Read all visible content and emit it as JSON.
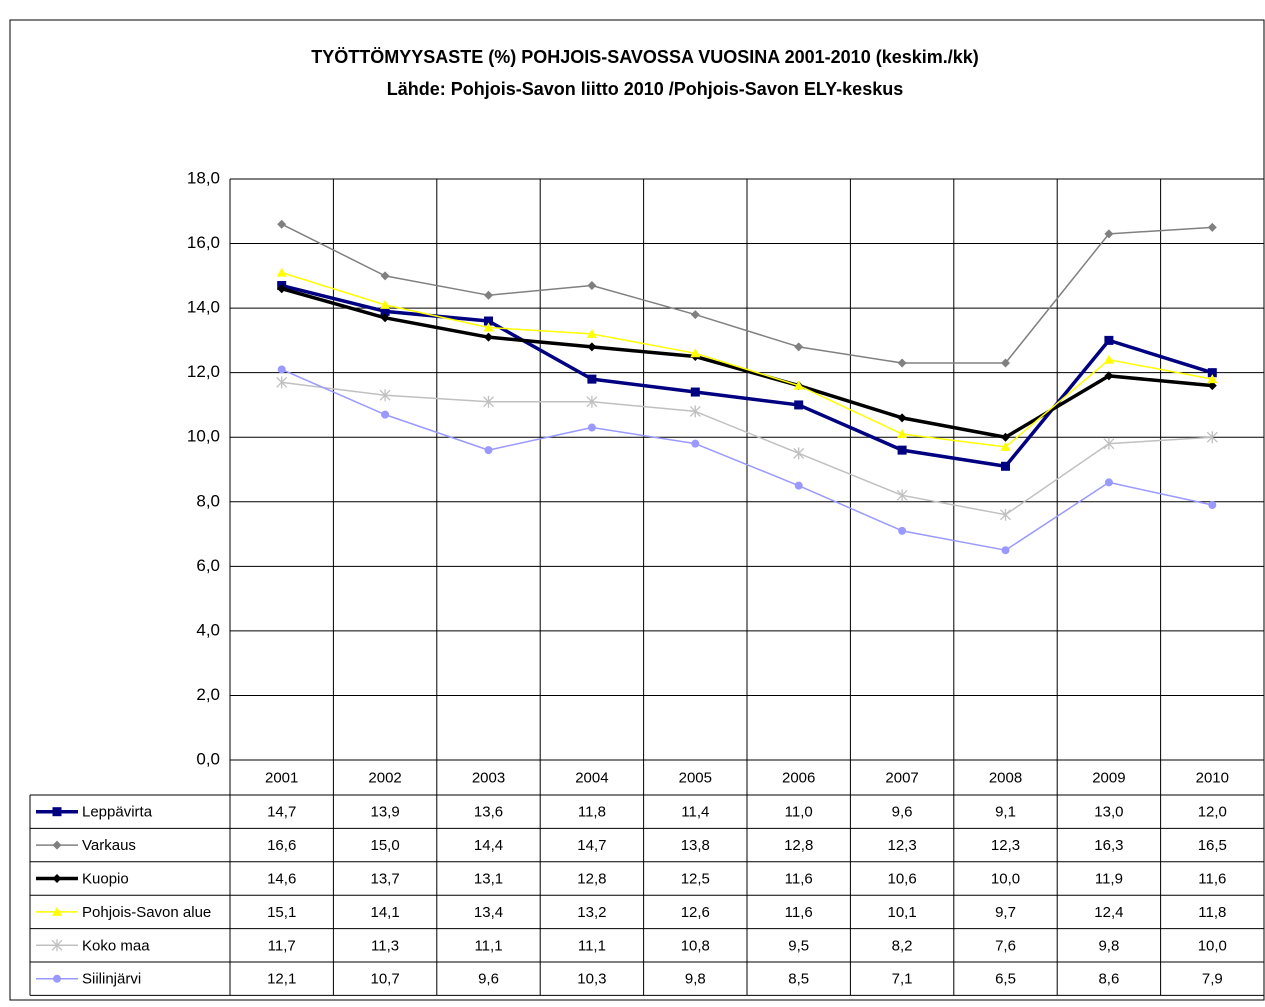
{
  "chart_data": {
    "type": "line",
    "title": "TYÖTTÖMYYSASTE (%) POHJOIS-SAVOSSA VUOSINA 2001-2010 (keskim./kk)",
    "subtitle": "Lähde: Pohjois-Savon liitto 2010 /Pohjois-Savon ELY-keskus",
    "categories": [
      "2001",
      "2002",
      "2003",
      "2004",
      "2005",
      "2006",
      "2007",
      "2008",
      "2009",
      "2010"
    ],
    "ylim": [
      0,
      18
    ],
    "yticks": [
      {
        "value": 0,
        "label": "0,0"
      },
      {
        "value": 2,
        "label": "2,0"
      },
      {
        "value": 4,
        "label": "4,0"
      },
      {
        "value": 6,
        "label": "6,0"
      },
      {
        "value": 8,
        "label": "8,0"
      },
      {
        "value": 10,
        "label": "10,0"
      },
      {
        "value": 12,
        "label": "12,0"
      },
      {
        "value": 14,
        "label": "14,0"
      },
      {
        "value": 16,
        "label": "16,0"
      },
      {
        "value": 18,
        "label": "18,0"
      }
    ],
    "grid": true,
    "series": [
      {
        "name": "Leppävirta",
        "color": "#000080",
        "marker": "square",
        "values": [
          14.7,
          13.9,
          13.6,
          11.8,
          11.4,
          11.0,
          9.6,
          9.1,
          13.0,
          12.0
        ],
        "value_labels": [
          "14,7",
          "13,9",
          "13,6",
          "11,8",
          "11,4",
          "11,0",
          "9,6",
          "9,1",
          "13,0",
          "12,0"
        ]
      },
      {
        "name": "Varkaus",
        "color": "#808080",
        "marker": "diamond",
        "values": [
          16.6,
          15.0,
          14.4,
          14.7,
          13.8,
          12.8,
          12.3,
          12.3,
          16.3,
          16.5
        ],
        "value_labels": [
          "16,6",
          "15,0",
          "14,4",
          "14,7",
          "13,8",
          "12,8",
          "12,3",
          "12,3",
          "16,3",
          "16,5"
        ]
      },
      {
        "name": "Kuopio",
        "color": "#000000",
        "marker": "diamond",
        "values": [
          14.6,
          13.7,
          13.1,
          12.8,
          12.5,
          11.6,
          10.6,
          10.0,
          11.9,
          11.6
        ],
        "value_labels": [
          "14,6",
          "13,7",
          "13,1",
          "12,8",
          "12,5",
          "11,6",
          "10,6",
          "10,0",
          "11,9",
          "11,6"
        ]
      },
      {
        "name": "Pohjois-Savon alue",
        "color": "#ffff00",
        "marker": "triangle",
        "values": [
          15.1,
          14.1,
          13.4,
          13.2,
          12.6,
          11.6,
          10.1,
          9.7,
          12.4,
          11.8
        ],
        "value_labels": [
          "15,1",
          "14,1",
          "13,4",
          "13,2",
          "12,6",
          "11,6",
          "10,1",
          "9,7",
          "12,4",
          "11,8"
        ]
      },
      {
        "name": "Koko maa",
        "color": "#c0c0c0",
        "marker": "star",
        "values": [
          11.7,
          11.3,
          11.1,
          11.1,
          10.8,
          9.5,
          8.2,
          7.6,
          9.8,
          10.0
        ],
        "value_labels": [
          "11,7",
          "11,3",
          "11,1",
          "11,1",
          "10,8",
          "9,5",
          "8,2",
          "7,6",
          "9,8",
          "10,0"
        ]
      },
      {
        "name": "Siilinjärvi",
        "color": "#9999ff",
        "marker": "circle",
        "values": [
          12.1,
          10.7,
          9.6,
          10.3,
          9.8,
          8.5,
          7.1,
          6.5,
          8.6,
          7.9
        ],
        "value_labels": [
          "12,1",
          "10,7",
          "9,6",
          "10,3",
          "9,8",
          "8,5",
          "7,1",
          "6,5",
          "8,6",
          "7,9"
        ]
      }
    ]
  }
}
